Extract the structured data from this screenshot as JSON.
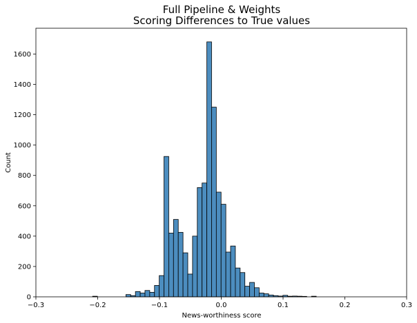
{
  "chart_data": {
    "type": "bar",
    "title": [
      "Full Pipeline & Weights",
      "Scoring Differences to True values"
    ],
    "xlabel": "News-worthiness score",
    "ylabel": "Count",
    "xlim": [
      -0.3,
      0.3
    ],
    "ylim": [
      0,
      1770
    ],
    "xticks": [
      -0.3,
      -0.2,
      -0.1,
      0.0,
      0.1,
      0.2,
      0.3
    ],
    "xtick_labels": [
      "−0.3",
      "−0.2",
      "−0.1",
      "0.0",
      "0.1",
      "0.2",
      "0.3"
    ],
    "yticks": [
      0,
      200,
      400,
      600,
      800,
      1000,
      1200,
      1400,
      1600
    ],
    "yticks_labels": [
      "0",
      "200",
      "400",
      "600",
      "800",
      "1000",
      "1200",
      "1400",
      "1600"
    ],
    "grid": false,
    "bar_color": "#4c8dbf",
    "edge_color": "#000000",
    "bin_width": 0.0077,
    "bins": [
      {
        "x": -0.2082,
        "count": 4
      },
      {
        "x": -0.1543,
        "count": 15
      },
      {
        "x": -0.1466,
        "count": 8
      },
      {
        "x": -0.1389,
        "count": 35
      },
      {
        "x": -0.1312,
        "count": 25
      },
      {
        "x": -0.1235,
        "count": 42
      },
      {
        "x": -0.1158,
        "count": 30
      },
      {
        "x": -0.1081,
        "count": 75
      },
      {
        "x": -0.1004,
        "count": 140
      },
      {
        "x": -0.0927,
        "count": 925
      },
      {
        "x": -0.085,
        "count": 420
      },
      {
        "x": -0.0773,
        "count": 510
      },
      {
        "x": -0.0696,
        "count": 425
      },
      {
        "x": -0.0619,
        "count": 290
      },
      {
        "x": -0.0542,
        "count": 150
      },
      {
        "x": -0.0465,
        "count": 400
      },
      {
        "x": -0.0388,
        "count": 720
      },
      {
        "x": -0.0311,
        "count": 750
      },
      {
        "x": -0.0234,
        "count": 1680
      },
      {
        "x": -0.0157,
        "count": 1250
      },
      {
        "x": -0.008,
        "count": 690
      },
      {
        "x": -0.0003,
        "count": 610
      },
      {
        "x": 0.0074,
        "count": 295
      },
      {
        "x": 0.0151,
        "count": 335
      },
      {
        "x": 0.0228,
        "count": 190
      },
      {
        "x": 0.0305,
        "count": 160
      },
      {
        "x": 0.0382,
        "count": 70
      },
      {
        "x": 0.0459,
        "count": 95
      },
      {
        "x": 0.0536,
        "count": 60
      },
      {
        "x": 0.0613,
        "count": 25
      },
      {
        "x": 0.069,
        "count": 20
      },
      {
        "x": 0.0767,
        "count": 12
      },
      {
        "x": 0.0844,
        "count": 8
      },
      {
        "x": 0.0921,
        "count": 5
      },
      {
        "x": 0.0998,
        "count": 10
      },
      {
        "x": 0.1075,
        "count": 4
      },
      {
        "x": 0.1152,
        "count": 5
      },
      {
        "x": 0.1229,
        "count": 4
      },
      {
        "x": 0.1306,
        "count": 3
      },
      {
        "x": 0.146,
        "count": 4
      }
    ]
  }
}
